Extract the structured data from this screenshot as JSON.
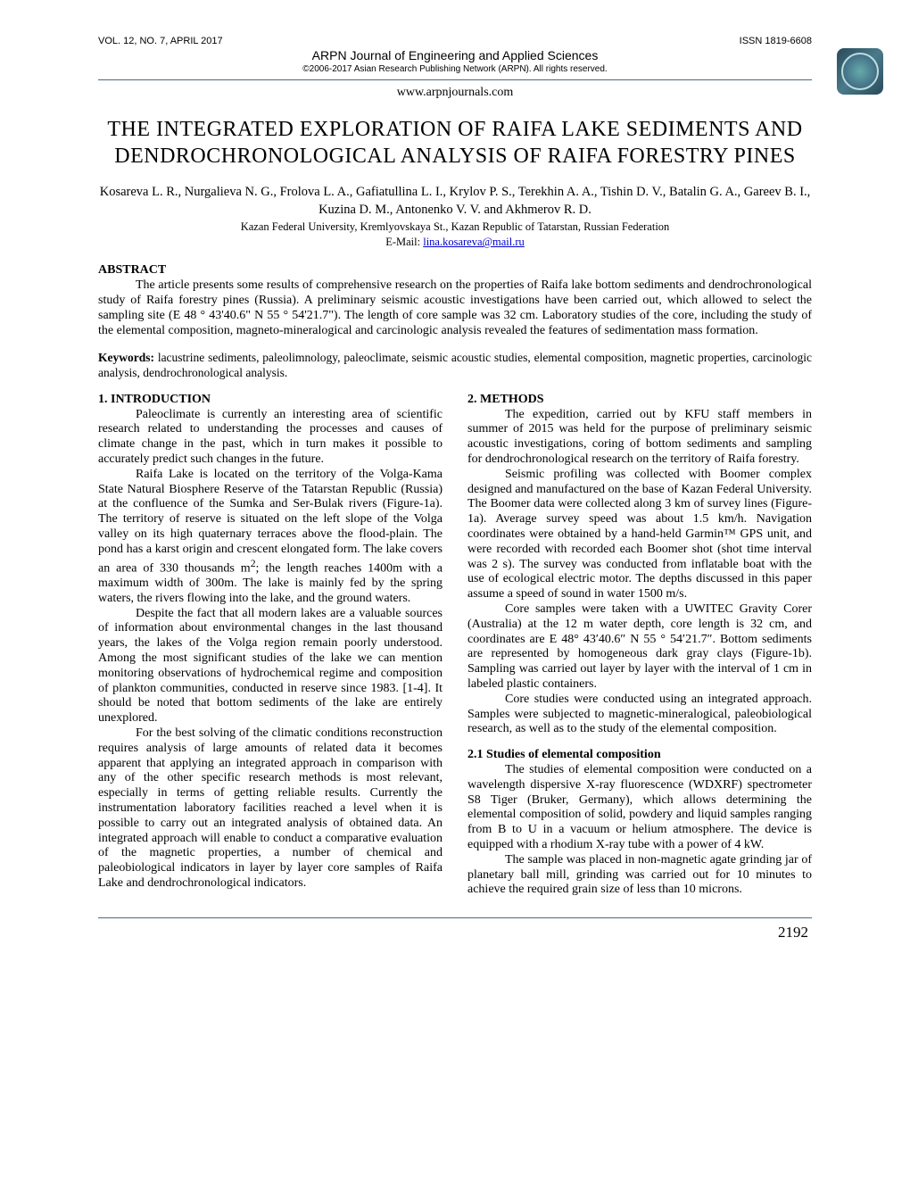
{
  "header": {
    "vol": "VOL. 12, NO. 7, APRIL 2017",
    "issn": "ISSN 1819-6608",
    "journal": "ARPN Journal of Engineering and Applied Sciences",
    "copyright": "©2006-2017 Asian Research Publishing Network (ARPN). All rights reserved.",
    "url": "www.arpnjournals.com"
  },
  "title": "THE INTEGRATED EXPLORATION OF RAIFA LAKE SEDIMENTS AND DENDROCHRONOLOGICAL ANALYSIS OF RAIFA FORESTRY PINES",
  "authors": "Kosareva L. R., Nurgalieva N. G., Frolova L. A., Gafiatullina L. I., Krylov P. S., Terekhin A. A., Tishin D. V., Batalin G. A., Gareev B. I., Kuzina D. M., Antonenko V. V. and Akhmerov R. D.",
  "affiliation": "Kazan Federal University, Kremlyovskaya St., Kazan Republic of Tatarstan, Russian Federation",
  "email_label": "E-Mail: ",
  "email": "lina.kosareva@mail.ru",
  "abstract_label": "ABSTRACT",
  "abstract": "The article presents some results of comprehensive research on the properties of Raifa lake bottom sediments and dendrochronological study of Raifa forestry pines (Russia). A preliminary seismic acoustic investigations have been carried out, which allowed to select the sampling site (E 48 ° 43'40.6\" N 55 ° 54'21.7\"). The length of core sample was 32 cm. Laboratory studies of the core, including the study of the elemental composition, magneto-mineralogical and carcinologic analysis revealed the features of sedimentation mass formation.",
  "keywords_label": "Keywords:",
  "keywords": " lacustrine sediments, paleolimnology, paleoclimate, seismic acoustic studies, elemental composition, magnetic properties, carcinologic analysis, dendrochronological analysis.",
  "col1": {
    "h1": "1. INTRODUCTION",
    "p1": "Paleoclimate is currently an interesting area of scientific research related to understanding the processes and causes of climate change in the past, which in turn makes it possible to accurately predict such changes in the future.",
    "p2a": "Raifa Lake is located on the territory of the Volga-Kama State Natural Biosphere Reserve of the Tatarstan Republic (Russia) at the confluence of the Sumka and Ser-Bulak rivers (Figure-1a). The territory of reserve is situated on the left slope of the Volga valley on its high quaternary terraces above the flood-plain. The pond has a karst origin and crescent elongated form. The lake covers an area of 330 thousands m",
    "p2b": "; the length reaches 1400m with a maximum width of 300m. The lake is mainly fed by the spring waters, the rivers flowing into the lake, and the ground waters.",
    "p3": "Despite the fact that all modern lakes are a valuable sources of information about environmental changes in the last thousand years, the lakes of the Volga region remain poorly understood. Among the most significant studies of the lake we can mention monitoring observations of hydrochemical regime and composition of plankton communities, conducted in reserve since 1983. [1-4]. It should be noted that bottom sediments of the lake are entirely unexplored.",
    "p4": "For the best solving of the climatic conditions reconstruction requires analysis of large amounts of related data it becomes apparent that applying an integrated approach in comparison with any of the other specific research methods is most relevant, especially in terms of getting reliable results. Currently the instrumentation laboratory facilities reached a level when it is possible to carry out an integrated analysis of obtained data. An integrated approach will enable to conduct a comparative evaluation of the magnetic properties, a number of chemical and paleobiological indicators in layer by layer core samples of Raifa Lake and dendrochronological indicators."
  },
  "col2": {
    "h1": "2. METHODS",
    "p1": "The expedition, carried out by KFU staff members in summer of 2015 was held for the purpose of preliminary seismic acoustic investigations, coring of bottom sediments and sampling for dendrochronological research on the territory of Raifa forestry.",
    "p2": "Seismic profiling was collected with Boomer complex designed and manufactured on the base of Kazan Federal University. The Boomer data were collected along 3 km of survey lines (Figure-1a). Average survey speed was about 1.5 km/h. Navigation coordinates were obtained by a hand-held Garmin™ GPS unit, and were recorded with recorded each Boomer shot (shot time interval was 2 s). The survey was conducted from inflatable boat with the use of ecological electric motor. The depths discussed in this paper assume a speed of sound in water 1500 m/s.",
    "p3": "Core samples were taken with a UWITEC Gravity Corer (Australia) at the 12 m water depth, core length is 32 cm, and coordinates are E 48° 43′40.6″ N 55 ° 54′21.7″. Bottom sediments are represented by homogeneous dark gray clays (Figure-1b). Sampling was carried out layer by layer with the interval of 1 cm in labeled plastic containers.",
    "p4": "Core studies were conducted using an integrated approach. Samples were subjected to magnetic-mineralogical, paleobiological research, as well as to the study of the elemental composition.",
    "h2": "2.1 Studies of elemental composition",
    "p5": "The studies of elemental composition were conducted on a wavelength dispersive X-ray fluorescence (WDXRF) spectrometer S8 Tiger (Bruker, Germany), which allows determining the elemental composition of solid, powdery and liquid samples ranging from B to U in a vacuum or helium atmosphere. The device is equipped with a rhodium X-ray tube with a power of 4 kW.",
    "p6": "The sample was placed in non-magnetic agate grinding jar of planetary ball mill, grinding was carried out for 10 minutes to achieve the required grain size of less than 10 microns."
  },
  "page_number": "2192",
  "colors": {
    "rule": "#4a6a7a",
    "link": "#0000cc",
    "text": "#000000",
    "background": "#ffffff"
  },
  "typography": {
    "body_font": "Times New Roman",
    "header_font": "Verdana",
    "title_fontsize_pt": 18,
    "body_fontsize_pt": 10.5,
    "header_fontsize_pt": 8
  }
}
